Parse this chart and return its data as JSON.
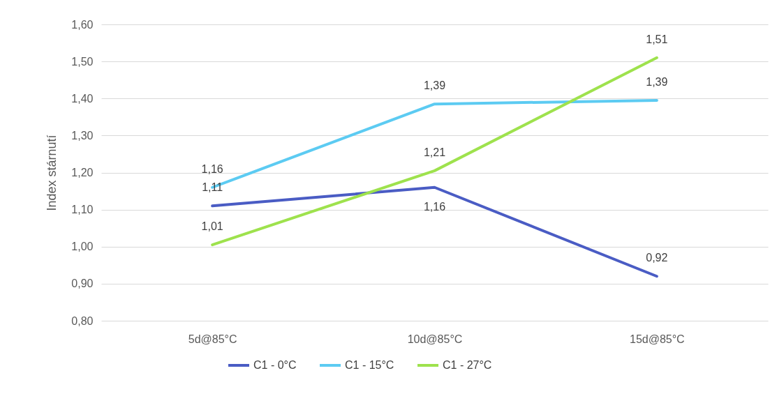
{
  "chart_data": {
    "type": "line",
    "ylabel": "Index stárnutí",
    "categories": [
      "5d@85°C",
      "10d@85°C",
      "15d@85°C"
    ],
    "series": [
      {
        "name": "C1 - 0°C",
        "color": "#4a5cc4",
        "values": [
          1.11,
          1.16,
          0.92
        ],
        "value_labels": [
          "1,11",
          "1,16",
          "0,92"
        ]
      },
      {
        "name": "C1 - 15°C",
        "color": "#5ccbf2",
        "values": [
          1.16,
          1.385,
          1.395
        ],
        "value_labels": [
          "1,16",
          "1,39",
          "1,39"
        ]
      },
      {
        "name": "C1 - 27°C",
        "color": "#9ee24d",
        "values": [
          1.005,
          1.205,
          1.51
        ],
        "value_labels": [
          "1,01",
          "1,21",
          "1,51"
        ]
      }
    ],
    "ylim": [
      0.8,
      1.6
    ],
    "yticks": [
      {
        "value": 0.8,
        "label": "0,80"
      },
      {
        "value": 0.9,
        "label": "0,90"
      },
      {
        "value": 1.0,
        "label": "1,00"
      },
      {
        "value": 1.1,
        "label": "1,10"
      },
      {
        "value": 1.2,
        "label": "1,20"
      },
      {
        "value": 1.3,
        "label": "1,30"
      },
      {
        "value": 1.4,
        "label": "1,40"
      },
      {
        "value": 1.5,
        "label": "1,50"
      },
      {
        "value": 1.6,
        "label": "1,60"
      }
    ],
    "grid": "y",
    "legend": "bottom",
    "marker": "none",
    "line_style": "solid"
  }
}
